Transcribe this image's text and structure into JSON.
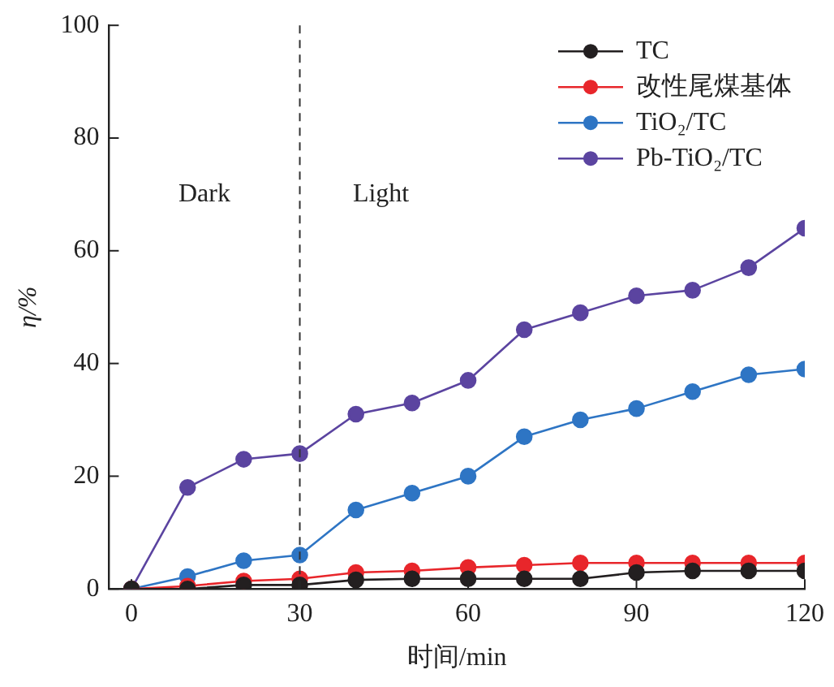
{
  "chart_data": {
    "type": "line",
    "xlabel": "时间/min",
    "ylabel": "η/%",
    "x": [
      0,
      10,
      20,
      30,
      40,
      50,
      60,
      70,
      80,
      90,
      100,
      110,
      120
    ],
    "series": [
      {
        "name": "TC",
        "color": "#231f20",
        "values": [
          0,
          0,
          0.7,
          0.7,
          1.6,
          1.8,
          1.8,
          1.8,
          1.8,
          2.9,
          3.2,
          3.2,
          3.2
        ]
      },
      {
        "name": "改性尾煤基体",
        "color": "#e8262b",
        "values": [
          0,
          0.5,
          1.4,
          1.8,
          2.9,
          3.2,
          3.8,
          4.2,
          4.6,
          4.6,
          4.6,
          4.6,
          4.6
        ]
      },
      {
        "name": "TiO₂/TC",
        "color": "#2e75c4",
        "values": [
          0,
          2.2,
          5,
          6,
          14,
          17,
          20,
          27,
          30,
          32,
          35,
          38,
          39
        ]
      },
      {
        "name": "Pb-TiO₂/TC",
        "color": "#5b44a0",
        "values": [
          0,
          18,
          23,
          24,
          31,
          33,
          37,
          46,
          49,
          52,
          53,
          57,
          64
        ]
      }
    ],
    "xlim": [
      -4,
      120
    ],
    "xticks": [
      0,
      30,
      60,
      90,
      120
    ],
    "ylim": [
      0,
      100
    ],
    "yticks": [
      0,
      20,
      40,
      60,
      80,
      100
    ],
    "ref_lines": [
      {
        "axis": "x",
        "value": 30,
        "line_style": "dashed",
        "color": "#333333"
      }
    ],
    "annotations": [
      "Dark",
      "Light"
    ],
    "legend": "top right",
    "marker": "circle",
    "line_style": "solid",
    "grid": false
  }
}
